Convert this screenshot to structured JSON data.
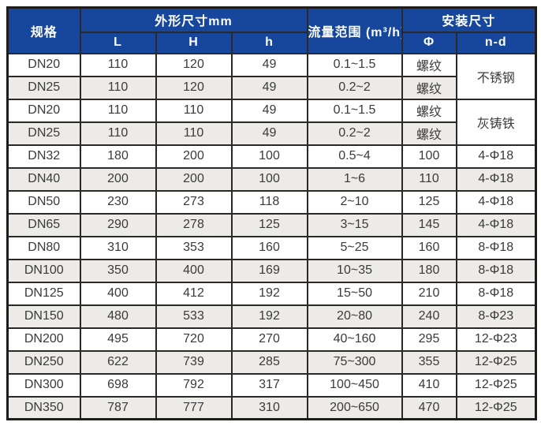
{
  "colors": {
    "header_bg": "#16479c",
    "header_text": "#ffffff",
    "row_bg": "#ffffff",
    "row_alt_bg": "#edebe8",
    "border": "#2b2927",
    "data_text": "#3a3a3a"
  },
  "table": {
    "headers": {
      "spec": "规格",
      "dims_group": "外形尺寸mm",
      "L": "L",
      "H": "H",
      "h": "h",
      "flow": "流量范围 (m³/h)",
      "install_group": "安装尺寸",
      "phi": "Φ",
      "nd": "n-d"
    },
    "rows": [
      {
        "spec": "DN20",
        "L": "110",
        "H": "120",
        "h": "49",
        "flow": "0.1~1.5",
        "phi": "螺纹",
        "material": "不锈钢",
        "material_rowspan": 2
      },
      {
        "spec": "DN25",
        "L": "110",
        "H": "120",
        "h": "49",
        "flow": "0.2~2",
        "phi": "螺纹"
      },
      {
        "spec": "DN20",
        "L": "110",
        "H": "110",
        "h": "49",
        "flow": "0.1~1.5",
        "phi": "螺纹",
        "material": "灰铸铁",
        "material_rowspan": 2
      },
      {
        "spec": "DN25",
        "L": "110",
        "H": "110",
        "h": "49",
        "flow": "0.2~2",
        "phi": "螺纹"
      },
      {
        "spec": "DN32",
        "L": "180",
        "H": "200",
        "h": "100",
        "flow": "0.5~4",
        "phi": "100",
        "nd": "4-Φ18"
      },
      {
        "spec": "DN40",
        "L": "200",
        "H": "200",
        "h": "100",
        "flow": "1~6",
        "phi": "110",
        "nd": "4-Φ18"
      },
      {
        "spec": "DN50",
        "L": "230",
        "H": "273",
        "h": "118",
        "flow": "2~10",
        "phi": "125",
        "nd": "4-Φ18"
      },
      {
        "spec": "DN65",
        "L": "290",
        "H": "278",
        "h": "125",
        "flow": "3~15",
        "phi": "145",
        "nd": "4-Φ18"
      },
      {
        "spec": "DN80",
        "L": "310",
        "H": "353",
        "h": "160",
        "flow": "5~25",
        "phi": "160",
        "nd": "8-Φ18"
      },
      {
        "spec": "DN100",
        "L": "350",
        "H": "400",
        "h": "169",
        "flow": "10~35",
        "phi": "180",
        "nd": "8-Φ18"
      },
      {
        "spec": "DN125",
        "L": "400",
        "H": "412",
        "h": "192",
        "flow": "15~50",
        "phi": "210",
        "nd": "8-Φ18"
      },
      {
        "spec": "DN150",
        "L": "480",
        "H": "533",
        "h": "192",
        "flow": "20~80",
        "phi": "240",
        "nd": "8-Φ23"
      },
      {
        "spec": "DN200",
        "L": "495",
        "H": "720",
        "h": "270",
        "flow": "40~160",
        "phi": "295",
        "nd": "12-Φ23"
      },
      {
        "spec": "DN250",
        "L": "622",
        "H": "739",
        "h": "285",
        "flow": "75~300",
        "phi": "355",
        "nd": "12-Φ25"
      },
      {
        "spec": "DN300",
        "L": "698",
        "H": "792",
        "h": "317",
        "flow": "100~450",
        "phi": "410",
        "nd": "12-Φ25"
      },
      {
        "spec": "DN350",
        "L": "787",
        "H": "777",
        "h": "310",
        "flow": "200~650",
        "phi": "470",
        "nd": "12-Φ25"
      }
    ]
  }
}
